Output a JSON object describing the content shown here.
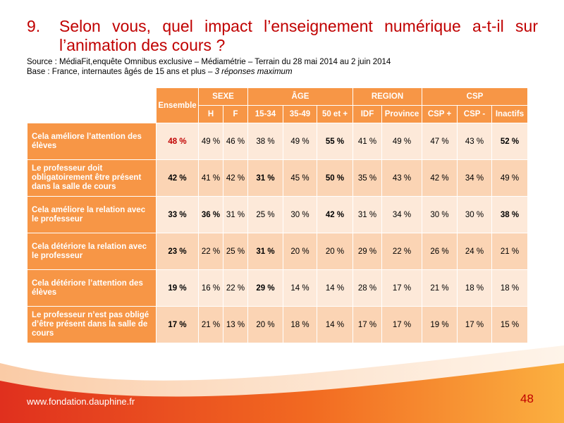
{
  "title": {
    "number": "9.",
    "text": "Selon vous, quel impact l’enseignement numérique a-t-il sur l’animation des cours ?"
  },
  "source": {
    "line1": "Source : MédiaFit,enquête Omnibus exclusive – Médiamétrie – Terrain du 28 mai 2014 au 2 juin 2014",
    "line2_prefix": "Base : France, internautes âgés de 15 ans et plus – ",
    "line2_italic": "3 réponses maximum"
  },
  "table": {
    "ensemble_label": "Ensemble",
    "groups": [
      "SEXE",
      "ÂGE",
      "REGION",
      "CSP"
    ],
    "subheaders": [
      "H",
      "F",
      "15-34",
      "35-49",
      "50 et +",
      "IDF",
      "Province",
      "CSP +",
      "CSP -",
      "Inactifs"
    ],
    "rows": [
      {
        "label": "Cela améliore l’attention des élèves",
        "ensemble": "48 %",
        "values": [
          "49 %",
          "46 %",
          "38 %",
          "49 %",
          "55 %",
          "41 %",
          "49 %",
          "47 %",
          "43 %",
          "52 %"
        ]
      },
      {
        "label": "Le professeur doit obligatoirement être présent dans la salle de cours",
        "ensemble": "42 %",
        "values": [
          "41 %",
          "42 %",
          "31 %",
          "45 %",
          "50 %",
          "35 %",
          "43 %",
          "42 %",
          "34 %",
          "49 %"
        ]
      },
      {
        "label": "Cela améliore la relation avec le professeur",
        "ensemble": "33 %",
        "values": [
          "36 %",
          "31 %",
          "25 %",
          "30 %",
          "42 %",
          "31 %",
          "34 %",
          "30 %",
          "30 %",
          "38 %"
        ]
      },
      {
        "label": "Cela détériore la relation avec le professeur",
        "ensemble": "23 %",
        "values": [
          "22 %",
          "25 %",
          "31 %",
          "20 %",
          "20 %",
          "29 %",
          "22 %",
          "26 %",
          "24 %",
          "21 %"
        ]
      },
      {
        "label": "Cela détériore l’attention des élèves",
        "ensemble": "19 %",
        "values": [
          "16 %",
          "22 %",
          "29 %",
          "14 %",
          "14 %",
          "28 %",
          "17 %",
          "21 %",
          "18 %",
          "18 %"
        ]
      },
      {
        "label": "Le professeur n’est pas obligé d’être présent dans la salle de cours",
        "ensemble": "17 %",
        "values": [
          "21 %",
          "13 %",
          "20 %",
          "18 %",
          "14 %",
          "17 %",
          "17 %",
          "19 %",
          "17 %",
          "15 %"
        ]
      }
    ]
  },
  "footer": {
    "url": "www.fondation.dauphine.fr",
    "page_number": "48"
  },
  "colors": {
    "accent": "#f79646",
    "title": "#c00000",
    "row_light": "#fde9d9",
    "row_dark": "#fbd4b4"
  }
}
